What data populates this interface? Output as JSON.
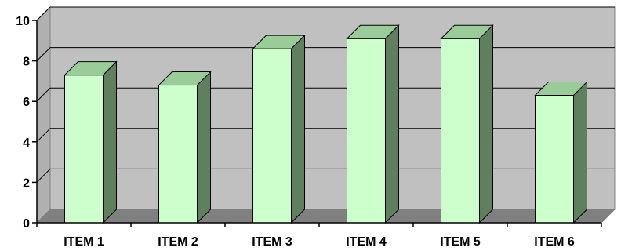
{
  "chart_data": {
    "type": "bar",
    "title": "",
    "xlabel": "",
    "ylabel": "",
    "categories": [
      "ITEM 1",
      "ITEM 2",
      "ITEM 3",
      "ITEM 4",
      "ITEM 5",
      "ITEM 6"
    ],
    "values": [
      7.3,
      6.8,
      8.6,
      9.1,
      9.1,
      6.3
    ],
    "ylim": [
      0,
      10
    ],
    "yticks": [
      "0",
      "2",
      "4",
      "6",
      "8",
      "10"
    ],
    "grid": true,
    "legend": "none",
    "style": "3d-column",
    "colors": {
      "bar_front": "#ccffcc",
      "bar_top": "#99cc99",
      "bar_side": "#5f7f5f",
      "back_wall": "#c0c0c0",
      "floor": "#808080",
      "gridline": "#000000",
      "outline": "#000000"
    }
  }
}
